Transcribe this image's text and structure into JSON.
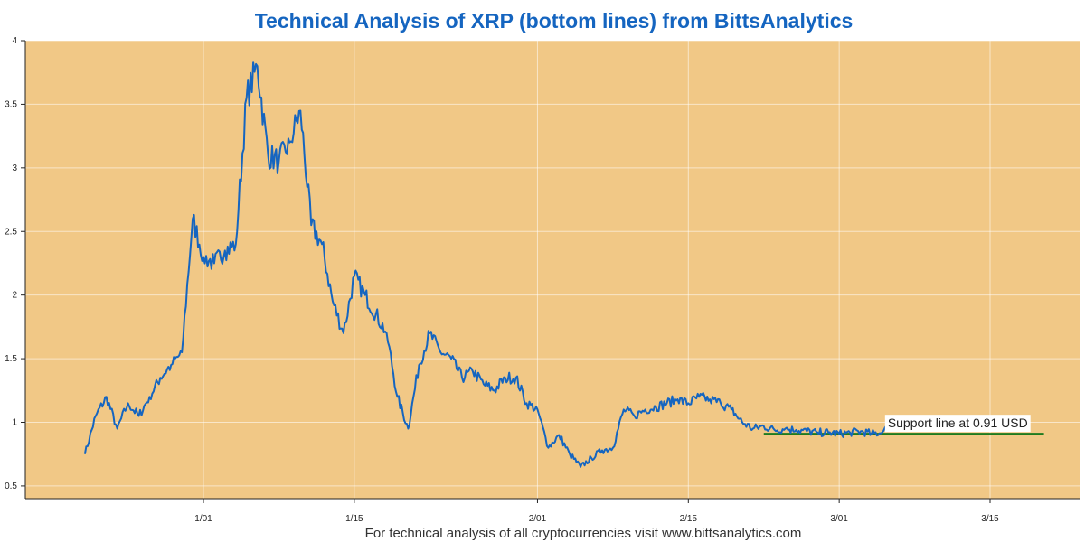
{
  "chart_data": {
    "type": "line",
    "title": "Technical Analysis of XRP (bottom lines) from BittsAnalytics",
    "footer": "For technical analysis of all cryptocurrencies visit www.bittsanalytics.com",
    "xlabel": "",
    "ylabel": "",
    "x_ticks": [
      "1/01",
      "1/15",
      "2/01",
      "2/15",
      "3/01",
      "3/15"
    ],
    "y_ticks": [
      "0.5",
      "1",
      "1.5",
      "2",
      "2.5",
      "3",
      "3.5",
      "4"
    ],
    "ylim": [
      0.5,
      4
    ],
    "grid": true,
    "colors": {
      "plot_background": "#f1c886",
      "price_line": "#1565c0",
      "support_line": "#1e7b1e",
      "title": "#1565c0"
    },
    "series": [
      {
        "x": [
          "12/21",
          "12/22",
          "12/23",
          "12/24",
          "12/25",
          "12/26",
          "12/27",
          "12/28",
          "12/29",
          "12/30",
          "12/31",
          "1/01",
          "1/02",
          "1/03",
          "1/04",
          "1/05",
          "1/06",
          "1/07",
          "1/08",
          "1/09",
          "1/10",
          "1/11",
          "1/12",
          "1/13",
          "1/14",
          "1/15",
          "1/16",
          "1/17",
          "1/18",
          "1/19",
          "1/20",
          "1/21",
          "1/22",
          "1/23",
          "1/24",
          "1/25",
          "1/26",
          "1/27",
          "1/28",
          "1/29",
          "1/30",
          "1/31",
          "2/01",
          "2/02",
          "2/03",
          "2/04",
          "2/05",
          "2/06",
          "2/07",
          "2/08",
          "2/09",
          "2/10",
          "2/11",
          "2/12",
          "2/13",
          "2/14",
          "2/15",
          "2/16",
          "2/17",
          "2/18",
          "2/19",
          "2/20",
          "2/21",
          "2/22",
          "2/23",
          "2/24",
          "2/25",
          "2/26",
          "2/27",
          "2/28",
          "3/01",
          "3/02",
          "3/03",
          "3/04",
          "3/05",
          "3/06"
        ],
        "values": [
          0.75,
          1.05,
          1.2,
          0.95,
          1.15,
          1.05,
          1.2,
          1.35,
          1.45,
          1.55,
          2.6,
          2.3,
          2.25,
          2.35,
          2.4,
          3.55,
          3.8,
          3.1,
          3.05,
          3.2,
          3.45,
          2.55,
          2.4,
          1.95,
          1.7,
          2.15,
          2.0,
          1.85,
          1.7,
          1.2,
          0.95,
          1.45,
          1.7,
          1.55,
          1.5,
          1.35,
          1.4,
          1.3,
          1.25,
          1.35,
          1.35,
          1.15,
          1.1,
          0.8,
          0.9,
          0.75,
          0.65,
          0.72,
          0.78,
          0.8,
          1.1,
          1.05,
          1.1,
          1.12,
          1.15,
          1.18,
          1.15,
          1.2,
          1.18,
          1.15,
          1.1,
          1.0,
          0.95,
          0.97,
          0.94,
          0.95,
          0.94,
          0.93,
          0.92,
          0.92,
          0.91,
          0.92,
          0.93,
          0.91,
          0.92,
          1.0
        ]
      }
    ],
    "support_line": {
      "y": 0.91,
      "x_start": "2/22",
      "x_end": "3/20",
      "label": "Support line at 0.91 USD"
    }
  }
}
